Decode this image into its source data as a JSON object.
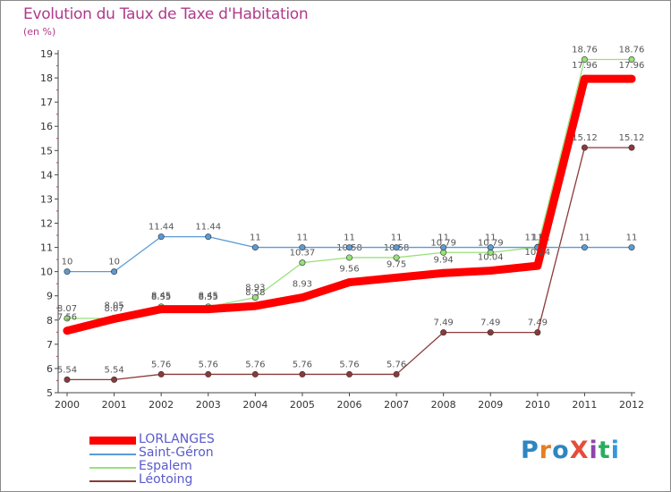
{
  "title": "Evolution du Taux de Taxe d'Habitation",
  "unit_label": "(en %)",
  "logo_text": "ProXiti",
  "chart_data": {
    "type": "line",
    "x": [
      "2000",
      "2001",
      "2002",
      "2003",
      "2004",
      "2005",
      "2006",
      "2007",
      "2008",
      "2009",
      "2010",
      "2011",
      "2012"
    ],
    "ylim": [
      5,
      19
    ],
    "yticks": [
      5,
      6,
      7,
      8,
      9,
      10,
      11,
      12,
      13,
      14,
      15,
      16,
      17,
      18,
      19
    ],
    "grid": false,
    "legend_position": "bottom-left",
    "series": [
      {
        "name": "LORLANGES",
        "color": "#ff0000",
        "values": [
          7.56,
          8.05,
          8.45,
          8.45,
          8.58,
          8.93,
          9.56,
          9.75,
          9.94,
          10.04,
          10.24,
          17.96,
          17.96
        ],
        "labels": [
          "7.56",
          "8.05",
          "8.45",
          "8.45",
          "8.58",
          "8.93",
          "9.56",
          "9.75",
          "9.94",
          "10.04",
          "10.24",
          "17.96",
          "17.96"
        ]
      },
      {
        "name": "Saint-Géron",
        "color": "#5b9bd5",
        "values": [
          10,
          10,
          11.44,
          11.44,
          11,
          11,
          11,
          11,
          11,
          11,
          11,
          11,
          11
        ],
        "labels": [
          "10",
          "10",
          "11.44",
          "11.44",
          "11",
          "11",
          "11",
          "11",
          "11",
          "11",
          "11",
          "11",
          "11"
        ]
      },
      {
        "name": "Espalem",
        "color": "#99e07a",
        "values": [
          8.07,
          8.07,
          8.55,
          8.55,
          8.93,
          10.37,
          10.58,
          10.58,
          10.79,
          10.79,
          11.01,
          18.76,
          18.76
        ],
        "labels": [
          "8.07",
          "8.07",
          "8.55",
          "8.55",
          "8.93",
          "10.37",
          "10.58",
          "10.58",
          "10.79",
          "10.79",
          "11.01",
          "18.76",
          "18.76"
        ]
      },
      {
        "name": "Léotoing",
        "color": "#8b3a3a",
        "values": [
          5.54,
          5.54,
          5.76,
          5.76,
          5.76,
          5.76,
          5.76,
          5.76,
          7.49,
          7.49,
          7.49,
          15.12,
          15.12
        ],
        "labels": [
          "5.54",
          "5.54",
          "5.76",
          "5.76",
          "5.76",
          "5.76",
          "5.76",
          "5.76",
          "7.49",
          "7.49",
          "7.49",
          "15.12",
          "15.12"
        ]
      }
    ]
  }
}
